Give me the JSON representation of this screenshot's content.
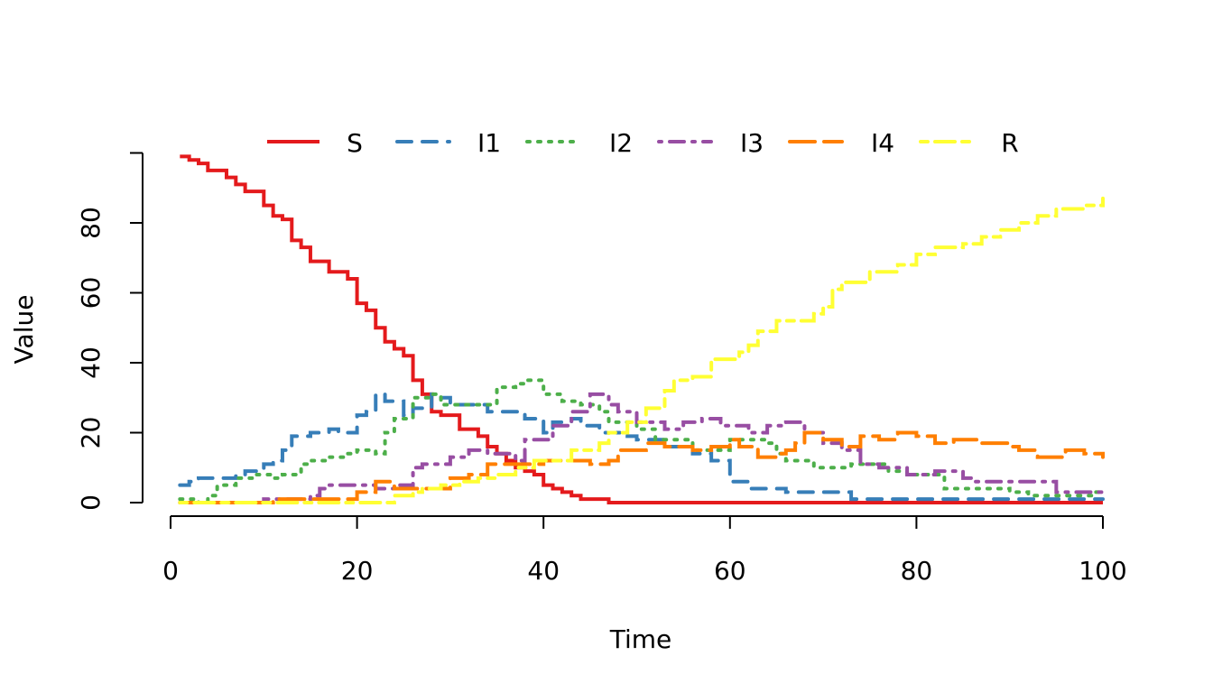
{
  "chart_data": {
    "type": "line",
    "step": true,
    "xlabel": "Time",
    "ylabel": "Value",
    "xlim": [
      0,
      100
    ],
    "ylim": [
      0,
      100
    ],
    "xticks": [
      0,
      20,
      40,
      60,
      80,
      100
    ],
    "yticks": [
      0,
      20,
      40,
      60,
      80
    ],
    "grid": false,
    "legend_position": "top",
    "series": [
      {
        "name": "S",
        "color": "#E41A1C",
        "dash": "solid",
        "points": [
          [
            1,
            99
          ],
          [
            2,
            98
          ],
          [
            3,
            97
          ],
          [
            4,
            95
          ],
          [
            6,
            93
          ],
          [
            7,
            91
          ],
          [
            8,
            89
          ],
          [
            10,
            85
          ],
          [
            11,
            82
          ],
          [
            12,
            81
          ],
          [
            13,
            75
          ],
          [
            14,
            73
          ],
          [
            15,
            69
          ],
          [
            17,
            66
          ],
          [
            19,
            64
          ],
          [
            20,
            57
          ],
          [
            21,
            55
          ],
          [
            22,
            50
          ],
          [
            23,
            46
          ],
          [
            24,
            44
          ],
          [
            25,
            42
          ],
          [
            26,
            35
          ],
          [
            27,
            31
          ],
          [
            28,
            26
          ],
          [
            29,
            25
          ],
          [
            31,
            21
          ],
          [
            33,
            19
          ],
          [
            34,
            16
          ],
          [
            35,
            14
          ],
          [
            36,
            12
          ],
          [
            37,
            10
          ],
          [
            38,
            9
          ],
          [
            39,
            8
          ],
          [
            40,
            5
          ],
          [
            41,
            4
          ],
          [
            42,
            3
          ],
          [
            43,
            2
          ],
          [
            44,
            1
          ],
          [
            47,
            0
          ],
          [
            100,
            0
          ]
        ]
      },
      {
        "name": "I1",
        "color": "#377EB8",
        "dash": "dashed",
        "points": [
          [
            1,
            5
          ],
          [
            2,
            6
          ],
          [
            3,
            7
          ],
          [
            7,
            8
          ],
          [
            8,
            9
          ],
          [
            10,
            11
          ],
          [
            11,
            12
          ],
          [
            12,
            15
          ],
          [
            13,
            19
          ],
          [
            15,
            20
          ],
          [
            17,
            21
          ],
          [
            18,
            20
          ],
          [
            20,
            25
          ],
          [
            21,
            26
          ],
          [
            22,
            31
          ],
          [
            23,
            29
          ],
          [
            25,
            25
          ],
          [
            26,
            27
          ],
          [
            28,
            31
          ],
          [
            29,
            30
          ],
          [
            30,
            28
          ],
          [
            34,
            26
          ],
          [
            38,
            24
          ],
          [
            40,
            20
          ],
          [
            41,
            23
          ],
          [
            43,
            24
          ],
          [
            44,
            22
          ],
          [
            46,
            20
          ],
          [
            49,
            19
          ],
          [
            50,
            18
          ],
          [
            53,
            16
          ],
          [
            56,
            14
          ],
          [
            58,
            12
          ],
          [
            60,
            6
          ],
          [
            62,
            4
          ],
          [
            66,
            3
          ],
          [
            73,
            1
          ],
          [
            100,
            1
          ]
        ]
      },
      {
        "name": "I2",
        "color": "#4DAF4A",
        "dash": "dotted",
        "points": [
          [
            1,
            1
          ],
          [
            3,
            0
          ],
          [
            4,
            2
          ],
          [
            5,
            5
          ],
          [
            7,
            7
          ],
          [
            9,
            8
          ],
          [
            11,
            7
          ],
          [
            12,
            8
          ],
          [
            14,
            11
          ],
          [
            15,
            12
          ],
          [
            17,
            13
          ],
          [
            19,
            14
          ],
          [
            20,
            15
          ],
          [
            22,
            14
          ],
          [
            23,
            20
          ],
          [
            24,
            24
          ],
          [
            26,
            30
          ],
          [
            28,
            31
          ],
          [
            29,
            28
          ],
          [
            33,
            28
          ],
          [
            35,
            33
          ],
          [
            37,
            34
          ],
          [
            38,
            35
          ],
          [
            40,
            31
          ],
          [
            42,
            29
          ],
          [
            44,
            28
          ],
          [
            46,
            26
          ],
          [
            47,
            23
          ],
          [
            50,
            21
          ],
          [
            52,
            18
          ],
          [
            56,
            15
          ],
          [
            60,
            18
          ],
          [
            64,
            17
          ],
          [
            65,
            14
          ],
          [
            66,
            12
          ],
          [
            69,
            10
          ],
          [
            73,
            11
          ],
          [
            77,
            9
          ],
          [
            79,
            8
          ],
          [
            83,
            4
          ],
          [
            90,
            3
          ],
          [
            92,
            2
          ],
          [
            99,
            3
          ],
          [
            100,
            2
          ]
        ]
      },
      {
        "name": "I3",
        "color": "#984EA3",
        "dash": "dotdash",
        "points": [
          [
            1,
            0
          ],
          [
            10,
            1
          ],
          [
            15,
            2
          ],
          [
            16,
            4
          ],
          [
            17,
            5
          ],
          [
            21,
            5
          ],
          [
            22,
            4
          ],
          [
            24,
            5
          ],
          [
            26,
            10
          ],
          [
            27,
            11
          ],
          [
            30,
            13
          ],
          [
            32,
            15
          ],
          [
            34,
            14
          ],
          [
            37,
            12
          ],
          [
            38,
            18
          ],
          [
            41,
            22
          ],
          [
            43,
            26
          ],
          [
            45,
            31
          ],
          [
            47,
            28
          ],
          [
            48,
            26
          ],
          [
            50,
            23
          ],
          [
            53,
            21
          ],
          [
            55,
            23
          ],
          [
            57,
            24
          ],
          [
            59,
            22
          ],
          [
            62,
            20
          ],
          [
            64,
            22
          ],
          [
            66,
            23
          ],
          [
            68,
            20
          ],
          [
            70,
            17
          ],
          [
            72,
            15
          ],
          [
            74,
            11
          ],
          [
            76,
            10
          ],
          [
            79,
            8
          ],
          [
            82,
            9
          ],
          [
            85,
            7
          ],
          [
            86,
            6
          ],
          [
            90,
            6
          ],
          [
            95,
            3
          ],
          [
            99,
            3
          ],
          [
            100,
            2
          ]
        ]
      },
      {
        "name": "I4",
        "color": "#FF7F00",
        "dash": "longdash",
        "points": [
          [
            1,
            0
          ],
          [
            11,
            1
          ],
          [
            20,
            3
          ],
          [
            22,
            6
          ],
          [
            24,
            4
          ],
          [
            27,
            4
          ],
          [
            30,
            7
          ],
          [
            32,
            8
          ],
          [
            34,
            11
          ],
          [
            38,
            11
          ],
          [
            40,
            12
          ],
          [
            45,
            11
          ],
          [
            47,
            12
          ],
          [
            48,
            15
          ],
          [
            51,
            17
          ],
          [
            53,
            16
          ],
          [
            56,
            15
          ],
          [
            58,
            16
          ],
          [
            60,
            18
          ],
          [
            61,
            16
          ],
          [
            63,
            13
          ],
          [
            65,
            14
          ],
          [
            66,
            15
          ],
          [
            67,
            17
          ],
          [
            68,
            20
          ],
          [
            70,
            18
          ],
          [
            72,
            16
          ],
          [
            74,
            19
          ],
          [
            76,
            18
          ],
          [
            78,
            20
          ],
          [
            80,
            19
          ],
          [
            82,
            17
          ],
          [
            84,
            18
          ],
          [
            87,
            17
          ],
          [
            90,
            16
          ],
          [
            91,
            15
          ],
          [
            93,
            13
          ],
          [
            96,
            15
          ],
          [
            98,
            14
          ],
          [
            100,
            13
          ]
        ]
      },
      {
        "name": "R",
        "color": "#FFFF33",
        "dash": "twodash",
        "points": [
          [
            1,
            0
          ],
          [
            23,
            0
          ],
          [
            24,
            2
          ],
          [
            26,
            3
          ],
          [
            27,
            4
          ],
          [
            29,
            5
          ],
          [
            31,
            6
          ],
          [
            33,
            7
          ],
          [
            35,
            8
          ],
          [
            37,
            10
          ],
          [
            39,
            12
          ],
          [
            43,
            15
          ],
          [
            46,
            17
          ],
          [
            47,
            20
          ],
          [
            49,
            23
          ],
          [
            51,
            27
          ],
          [
            53,
            32
          ],
          [
            54,
            35
          ],
          [
            56,
            36
          ],
          [
            58,
            41
          ],
          [
            61,
            43
          ],
          [
            62,
            45
          ],
          [
            63,
            49
          ],
          [
            65,
            52
          ],
          [
            69,
            54
          ],
          [
            70,
            56
          ],
          [
            71,
            61
          ],
          [
            72,
            63
          ],
          [
            75,
            66
          ],
          [
            78,
            68
          ],
          [
            80,
            71
          ],
          [
            82,
            73
          ],
          [
            85,
            74
          ],
          [
            87,
            76
          ],
          [
            89,
            78
          ],
          [
            91,
            80
          ],
          [
            93,
            82
          ],
          [
            95,
            84
          ],
          [
            98,
            85
          ],
          [
            100,
            87
          ]
        ]
      }
    ]
  }
}
